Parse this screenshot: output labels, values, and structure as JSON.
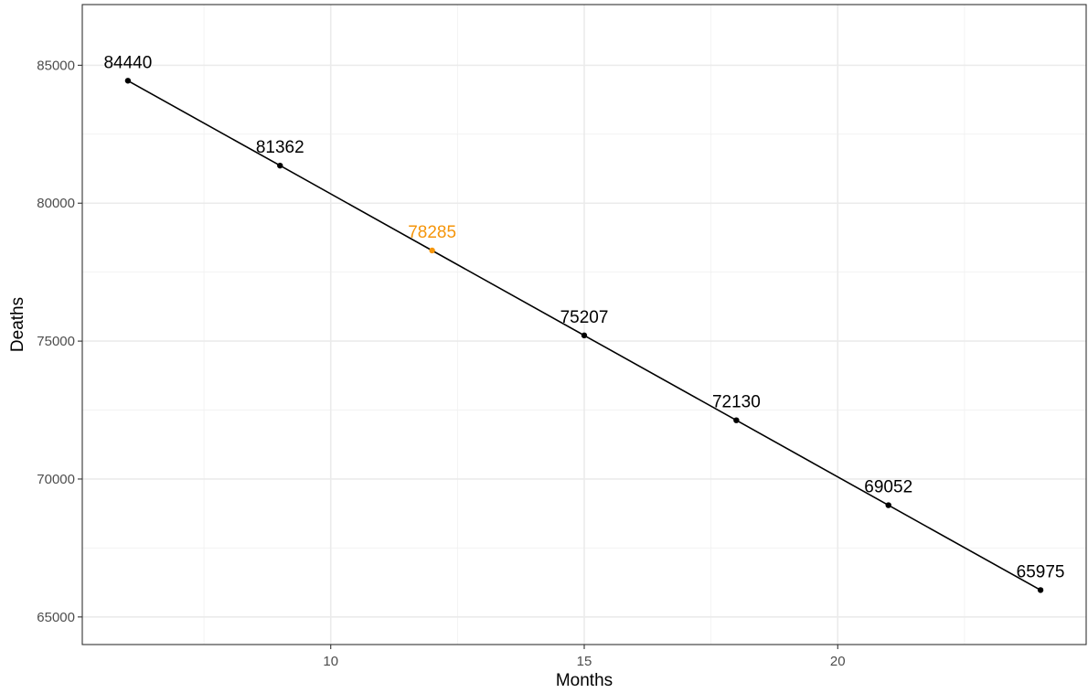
{
  "chart_data": {
    "type": "line",
    "title": "",
    "xlabel": "Months",
    "ylabel": "Deaths",
    "x": [
      6,
      9,
      12,
      15,
      18,
      21,
      24
    ],
    "series": [
      {
        "values": [
          84440,
          81362,
          78285,
          75207,
          72130,
          69052,
          65975
        ]
      }
    ],
    "data_labels": [
      "84440",
      "81362",
      "78285",
      "75207",
      "72130",
      "69052",
      "65975"
    ],
    "highlight_index": 2,
    "xlim": [
      5.1,
      24.9
    ],
    "ylim": [
      64000,
      87200
    ],
    "x_ticks": [
      10,
      15,
      20
    ],
    "x_tick_labels": [
      "10",
      "15",
      "20"
    ],
    "x_minor_ticks": [
      7.5,
      12.5,
      17.5,
      22.5
    ],
    "y_ticks": [
      65000,
      70000,
      75000,
      80000,
      85000
    ],
    "y_tick_labels": [
      "65000",
      "70000",
      "75000",
      "80000",
      "85000"
    ],
    "y_minor_ticks": [
      67500,
      72500,
      77500,
      82500
    ],
    "grid": true,
    "legend": "none",
    "colors": {
      "line": "#000000",
      "point": "#000000",
      "highlight": "#f5950a",
      "grid_major": "#ebebeb",
      "grid_minor": "#f2f2f2",
      "panel_border": "#333333",
      "tick_text": "#4d4d4d"
    }
  }
}
